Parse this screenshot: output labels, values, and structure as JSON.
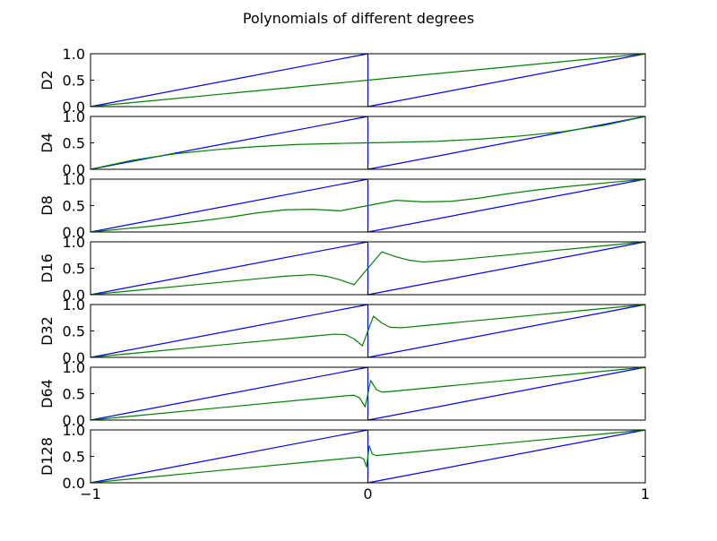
{
  "chart_data": {
    "type": "line",
    "title": "Polynomials of different degrees",
    "xlim": [
      -1,
      1
    ],
    "ylim": [
      0,
      1
    ],
    "x_ticks": [
      "−1",
      "0",
      "1"
    ],
    "y_ticks": [
      "0.0",
      "0.5",
      "1.0"
    ],
    "grid": false,
    "legend": null,
    "target_color": "#0000ff",
    "approx_color": "#008000",
    "target_function": {
      "description_points": [
        {
          "x": -1,
          "y": 0
        },
        {
          "x": 0,
          "y": 1
        },
        {
          "x": 0,
          "y": 0
        },
        {
          "x": 1,
          "y": 1
        }
      ]
    },
    "panels": [
      {
        "ylabel": "D2",
        "approx": [
          {
            "x": -1.0,
            "y": 0.0
          },
          {
            "x": -0.75,
            "y": 0.125
          },
          {
            "x": -0.5,
            "y": 0.25
          },
          {
            "x": -0.25,
            "y": 0.375
          },
          {
            "x": 0.0,
            "y": 0.5
          },
          {
            "x": 0.25,
            "y": 0.625
          },
          {
            "x": 0.5,
            "y": 0.75
          },
          {
            "x": 0.75,
            "y": 0.875
          },
          {
            "x": 1.0,
            "y": 1.0
          }
        ]
      },
      {
        "ylabel": "D4",
        "approx": [
          {
            "x": -1.0,
            "y": 0.0
          },
          {
            "x": -0.85,
            "y": 0.17
          },
          {
            "x": -0.7,
            "y": 0.29
          },
          {
            "x": -0.55,
            "y": 0.37
          },
          {
            "x": -0.4,
            "y": 0.43
          },
          {
            "x": -0.25,
            "y": 0.47
          },
          {
            "x": -0.1,
            "y": 0.49
          },
          {
            "x": 0.0,
            "y": 0.5
          },
          {
            "x": 0.1,
            "y": 0.51
          },
          {
            "x": 0.25,
            "y": 0.53
          },
          {
            "x": 0.4,
            "y": 0.57
          },
          {
            "x": 0.55,
            "y": 0.63
          },
          {
            "x": 0.7,
            "y": 0.71
          },
          {
            "x": 0.85,
            "y": 0.83
          },
          {
            "x": 1.0,
            "y": 1.0
          }
        ]
      },
      {
        "ylabel": "D8",
        "approx": [
          {
            "x": -1.0,
            "y": 0.0
          },
          {
            "x": -0.9,
            "y": 0.05
          },
          {
            "x": -0.8,
            "y": 0.1
          },
          {
            "x": -0.7,
            "y": 0.15
          },
          {
            "x": -0.6,
            "y": 0.21
          },
          {
            "x": -0.5,
            "y": 0.28
          },
          {
            "x": -0.4,
            "y": 0.36
          },
          {
            "x": -0.3,
            "y": 0.42
          },
          {
            "x": -0.2,
            "y": 0.43
          },
          {
            "x": -0.1,
            "y": 0.4
          },
          {
            "x": 0.0,
            "y": 0.5
          },
          {
            "x": 0.1,
            "y": 0.6
          },
          {
            "x": 0.2,
            "y": 0.57
          },
          {
            "x": 0.3,
            "y": 0.58
          },
          {
            "x": 0.4,
            "y": 0.64
          },
          {
            "x": 0.5,
            "y": 0.72
          },
          {
            "x": 0.6,
            "y": 0.79
          },
          {
            "x": 0.7,
            "y": 0.85
          },
          {
            "x": 0.8,
            "y": 0.9
          },
          {
            "x": 0.9,
            "y": 0.95
          },
          {
            "x": 1.0,
            "y": 1.0
          }
        ]
      },
      {
        "ylabel": "D16",
        "approx": [
          {
            "x": -1.0,
            "y": 0.0
          },
          {
            "x": -0.8,
            "y": 0.1
          },
          {
            "x": -0.6,
            "y": 0.2
          },
          {
            "x": -0.4,
            "y": 0.3
          },
          {
            "x": -0.3,
            "y": 0.35
          },
          {
            "x": -0.2,
            "y": 0.38
          },
          {
            "x": -0.15,
            "y": 0.35
          },
          {
            "x": -0.1,
            "y": 0.28
          },
          {
            "x": -0.05,
            "y": 0.19
          },
          {
            "x": 0.0,
            "y": 0.5
          },
          {
            "x": 0.05,
            "y": 0.81
          },
          {
            "x": 0.1,
            "y": 0.72
          },
          {
            "x": 0.15,
            "y": 0.65
          },
          {
            "x": 0.2,
            "y": 0.62
          },
          {
            "x": 0.3,
            "y": 0.65
          },
          {
            "x": 0.4,
            "y": 0.7
          },
          {
            "x": 0.6,
            "y": 0.8
          },
          {
            "x": 0.8,
            "y": 0.9
          },
          {
            "x": 1.0,
            "y": 1.0
          }
        ]
      },
      {
        "ylabel": "D32",
        "approx": [
          {
            "x": -1.0,
            "y": 0.0
          },
          {
            "x": -0.8,
            "y": 0.1
          },
          {
            "x": -0.6,
            "y": 0.2
          },
          {
            "x": -0.4,
            "y": 0.3
          },
          {
            "x": -0.2,
            "y": 0.4
          },
          {
            "x": -0.12,
            "y": 0.44
          },
          {
            "x": -0.08,
            "y": 0.43
          },
          {
            "x": -0.05,
            "y": 0.35
          },
          {
            "x": -0.02,
            "y": 0.22
          },
          {
            "x": 0.0,
            "y": 0.5
          },
          {
            "x": 0.02,
            "y": 0.78
          },
          {
            "x": 0.05,
            "y": 0.65
          },
          {
            "x": 0.08,
            "y": 0.57
          },
          {
            "x": 0.12,
            "y": 0.56
          },
          {
            "x": 0.2,
            "y": 0.6
          },
          {
            "x": 0.4,
            "y": 0.7
          },
          {
            "x": 0.6,
            "y": 0.8
          },
          {
            "x": 0.8,
            "y": 0.9
          },
          {
            "x": 1.0,
            "y": 1.0
          }
        ]
      },
      {
        "ylabel": "D64",
        "approx": [
          {
            "x": -1.0,
            "y": 0.0
          },
          {
            "x": -0.8,
            "y": 0.1
          },
          {
            "x": -0.6,
            "y": 0.2
          },
          {
            "x": -0.4,
            "y": 0.3
          },
          {
            "x": -0.2,
            "y": 0.4
          },
          {
            "x": -0.08,
            "y": 0.46
          },
          {
            "x": -0.05,
            "y": 0.47
          },
          {
            "x": -0.03,
            "y": 0.42
          },
          {
            "x": -0.01,
            "y": 0.25
          },
          {
            "x": 0.0,
            "y": 0.5
          },
          {
            "x": 0.01,
            "y": 0.75
          },
          {
            "x": 0.03,
            "y": 0.58
          },
          {
            "x": 0.05,
            "y": 0.53
          },
          {
            "x": 0.08,
            "y": 0.54
          },
          {
            "x": 0.2,
            "y": 0.6
          },
          {
            "x": 0.4,
            "y": 0.7
          },
          {
            "x": 0.6,
            "y": 0.8
          },
          {
            "x": 0.8,
            "y": 0.9
          },
          {
            "x": 1.0,
            "y": 1.0
          }
        ]
      },
      {
        "ylabel": "D128",
        "approx": [
          {
            "x": -1.0,
            "y": 0.0
          },
          {
            "x": -0.8,
            "y": 0.1
          },
          {
            "x": -0.6,
            "y": 0.2
          },
          {
            "x": -0.4,
            "y": 0.3
          },
          {
            "x": -0.2,
            "y": 0.4
          },
          {
            "x": -0.05,
            "y": 0.475
          },
          {
            "x": -0.03,
            "y": 0.485
          },
          {
            "x": -0.015,
            "y": 0.45
          },
          {
            "x": -0.005,
            "y": 0.3
          },
          {
            "x": 0.0,
            "y": 0.5
          },
          {
            "x": 0.005,
            "y": 0.7
          },
          {
            "x": 0.015,
            "y": 0.55
          },
          {
            "x": 0.03,
            "y": 0.515
          },
          {
            "x": 0.05,
            "y": 0.525
          },
          {
            "x": 0.2,
            "y": 0.6
          },
          {
            "x": 0.4,
            "y": 0.7
          },
          {
            "x": 0.6,
            "y": 0.8
          },
          {
            "x": 0.8,
            "y": 0.9
          },
          {
            "x": 1.0,
            "y": 1.0
          }
        ]
      }
    ]
  }
}
